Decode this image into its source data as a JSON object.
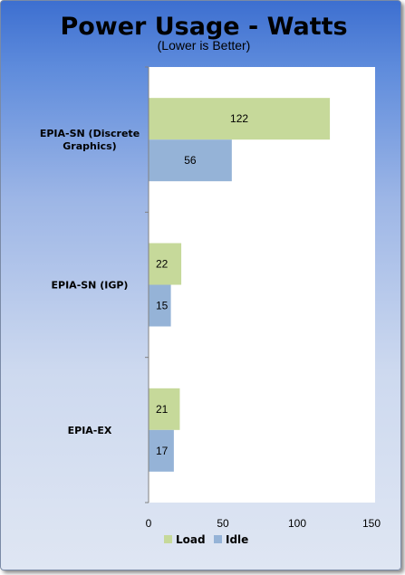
{
  "chart_data": {
    "type": "bar",
    "orientation": "horizontal",
    "title": "Power Usage - Watts",
    "subtitle": "(Lower is Better)",
    "categories": [
      [
        "EPIA-SN (Discrete",
        "Graphics)"
      ],
      [
        "EPIA-SN (IGP)"
      ],
      [
        "EPIA-EX"
      ]
    ],
    "series": [
      {
        "name": "Load",
        "values": [
          122,
          22,
          21
        ],
        "color": "#c6d99a"
      },
      {
        "name": "Idle",
        "values": [
          56,
          15,
          17
        ],
        "color": "#95b3d7"
      }
    ],
    "xlim": [
      0,
      150
    ],
    "xticks": [
      "0",
      "50",
      "100",
      "150"
    ],
    "grid": false,
    "legend": "bottom"
  }
}
